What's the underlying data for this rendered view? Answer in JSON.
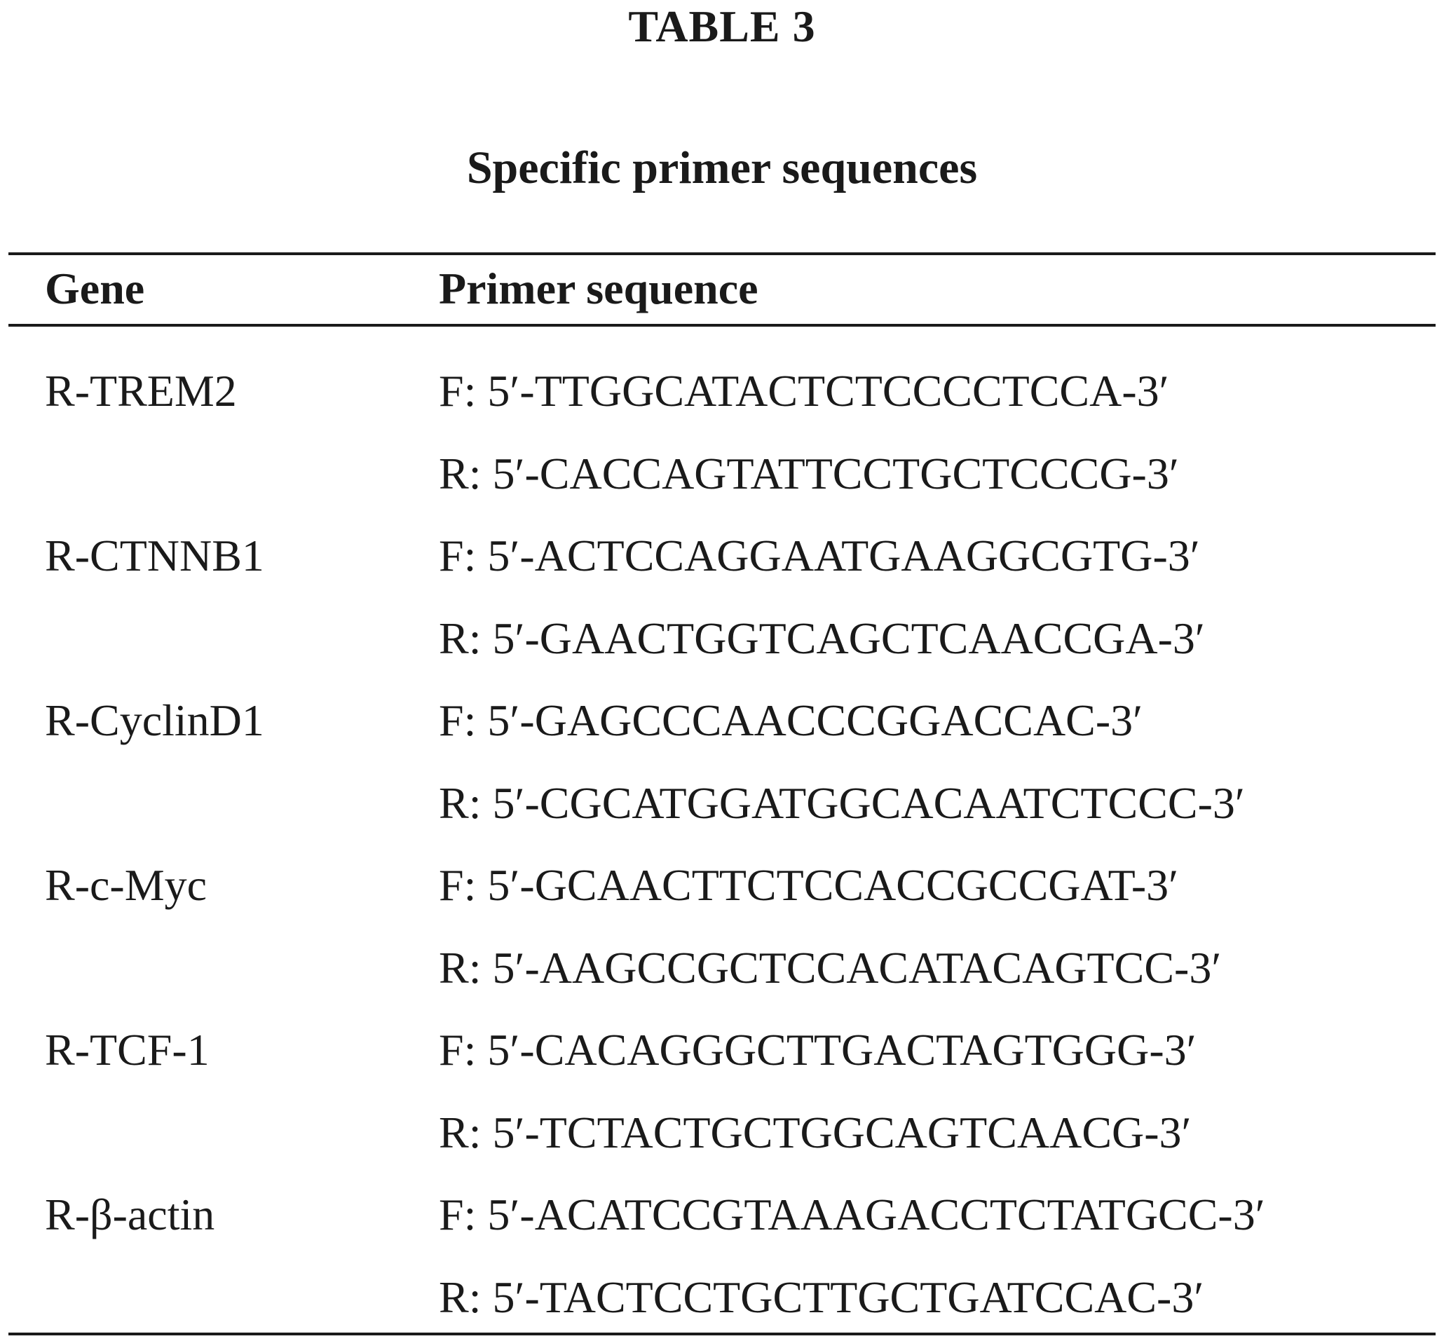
{
  "table": {
    "label": "TABLE 3",
    "title": "Specific primer sequences",
    "headers": {
      "gene": "Gene",
      "sequence": "Primer sequence"
    },
    "rows": [
      {
        "gene": "R-TREM2",
        "forward": "F: 5′-TTGGCATACTCTCCCCTCCA-3′",
        "reverse": "R: 5′-CACCAGTATTCCTGCTCCCG-3′"
      },
      {
        "gene": "R-CTNNB1",
        "forward": "F: 5′-ACTCCAGGAATGAAGGCGTG-3′",
        "reverse": "R: 5′-GAACTGGTCAGCTCAACCGA-3′"
      },
      {
        "gene": "R-CyclinD1",
        "forward": "F: 5′-GAGCCCAACCCGGACCAC-3′",
        "reverse": "R: 5′-CGCATGGATGGCACAATCTCCC-3′"
      },
      {
        "gene": "R-c-Myc",
        "forward": "F: 5′-GCAACTTCTCCACCGCCGAT-3′",
        "reverse": "R: 5′-AAGCCGCTCCACATACAGTCC-3′"
      },
      {
        "gene": "R-TCF-1",
        "forward": "F: 5′-CACAGGGCTTGACTAGTGGG-3′",
        "reverse": "R: 5′-TCTACTGCTGGCAGTCAACG-3′"
      },
      {
        "gene": "R-β-actin",
        "forward": "F: 5′-ACATCCGTAAAGACCTCTATGCC-3′",
        "reverse": "R: 5′-TACTCCTGCTTGCTGATCCAC-3′"
      }
    ]
  }
}
